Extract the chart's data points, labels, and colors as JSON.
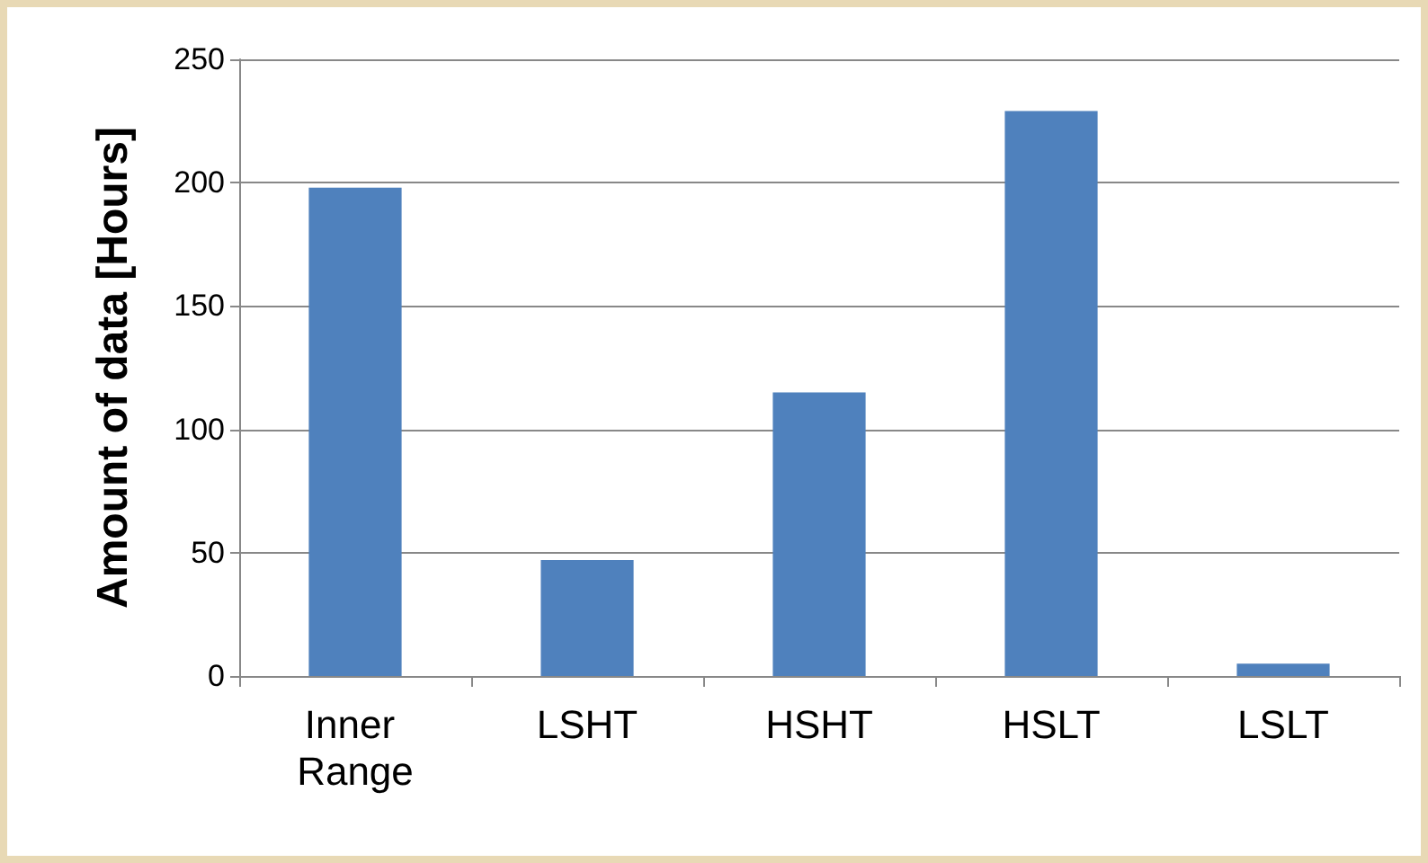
{
  "chart_data": {
    "type": "bar",
    "ylabel": "Amount of data [Hours]",
    "categories": [
      "Inner Range",
      "LSHT",
      "HSHT",
      "HSLT",
      "LSLT"
    ],
    "values": [
      198,
      47,
      115,
      229,
      5
    ],
    "color": "#4f81bd",
    "ylim": [
      0,
      250
    ],
    "yticks": [
      0,
      50,
      100,
      150,
      200,
      250
    ],
    "grid": "y"
  }
}
